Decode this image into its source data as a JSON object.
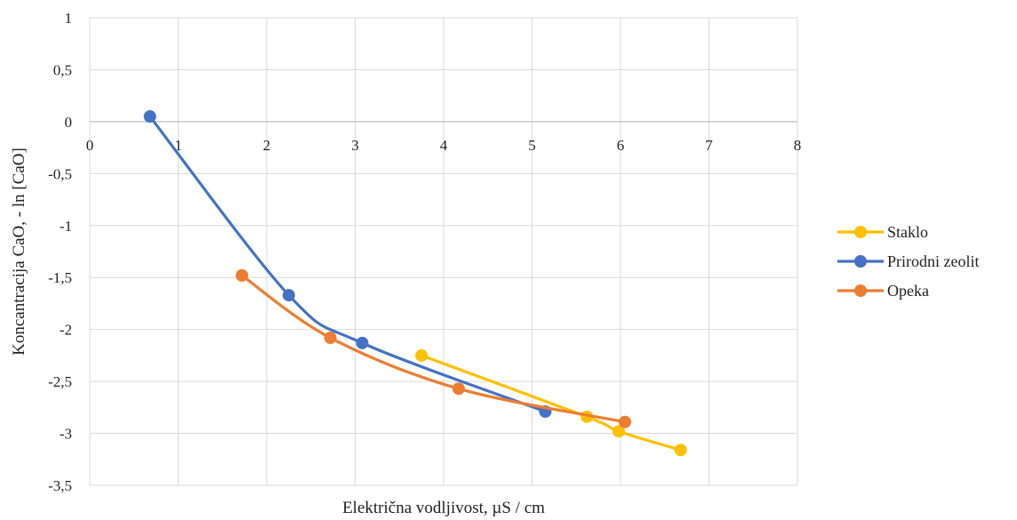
{
  "chart_data": {
    "type": "line",
    "title": "",
    "xlabel": "Električna vodljivost, µS / cm",
    "ylabel": "Koncantracija CaO, - ln [CaO]",
    "xlim": [
      0,
      8
    ],
    "ylim": [
      -3.5,
      1
    ],
    "x_ticks": [
      "0",
      "1",
      "2",
      "3",
      "4",
      "5",
      "6",
      "7",
      "8"
    ],
    "y_ticks": [
      "1",
      "0,5",
      "0",
      "-0,5",
      "-1",
      "-1,5",
      "-2",
      "-2,5",
      "-3",
      "-3,5"
    ],
    "grid": true,
    "legend_position": "right",
    "series": [
      {
        "name": "Staklo",
        "color": "#FFC000",
        "points": [
          [
            3.75,
            -2.25
          ],
          [
            5.62,
            -2.84
          ],
          [
            5.98,
            -2.98
          ],
          [
            6.68,
            -3.16
          ]
        ]
      },
      {
        "name": "Prirodni zeolit",
        "color": "#4472C4",
        "points": [
          [
            0.68,
            0.05
          ],
          [
            2.25,
            -1.67
          ],
          [
            3.08,
            -2.13
          ],
          [
            5.15,
            -2.79
          ]
        ]
      },
      {
        "name": "Opeka",
        "color": "#ED7D31",
        "points": [
          [
            1.72,
            -1.48
          ],
          [
            2.72,
            -2.08
          ],
          [
            4.17,
            -2.57
          ],
          [
            6.05,
            -2.89
          ]
        ]
      }
    ]
  }
}
